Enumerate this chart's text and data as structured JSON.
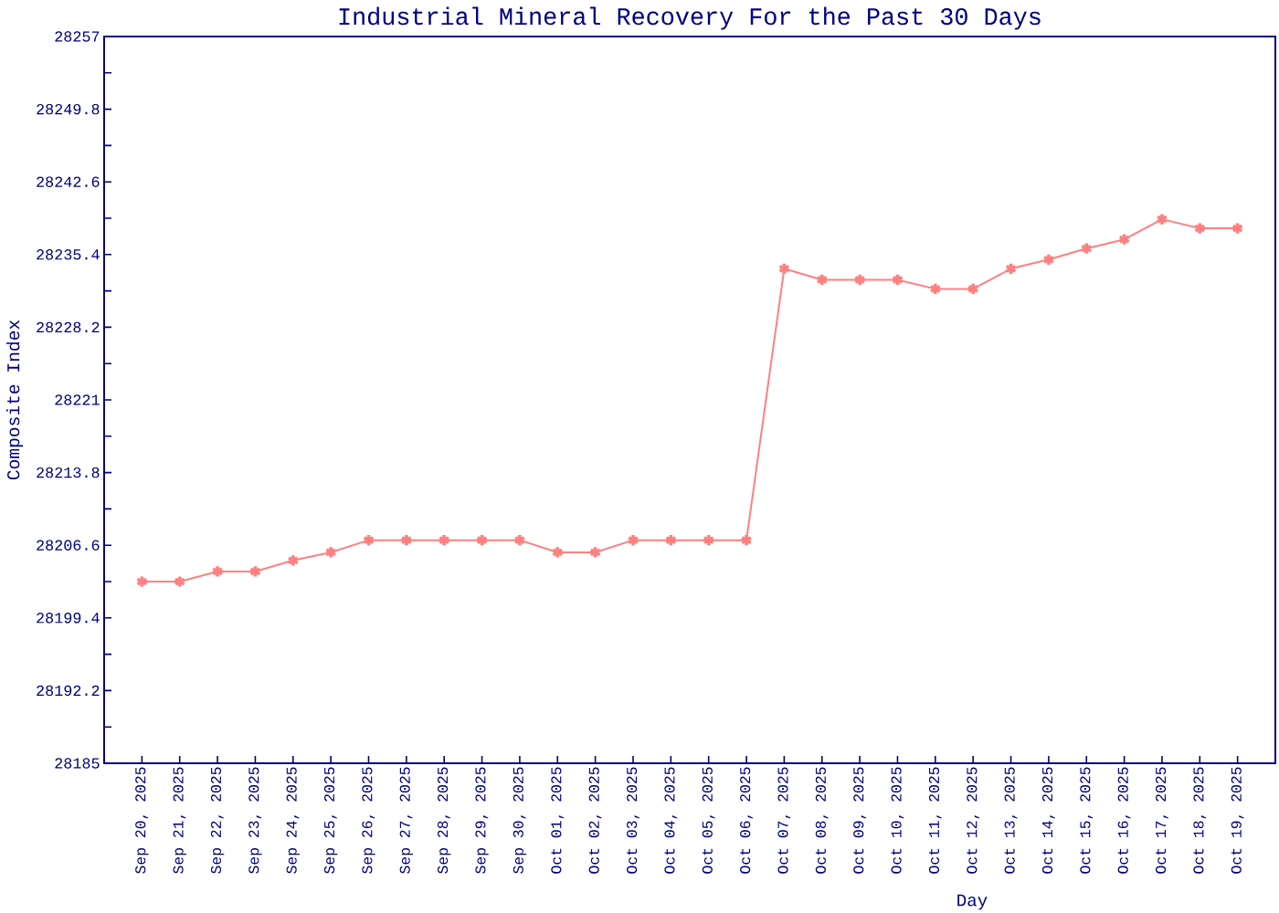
{
  "chart_data": {
    "type": "line",
    "title": "Industrial Mineral Recovery For the Past 30 Days",
    "xlabel": "Day",
    "ylabel": "Composite Index",
    "categories": [
      "Sep 20, 2025",
      "Sep 21, 2025",
      "Sep 22, 2025",
      "Sep 23, 2025",
      "Sep 24, 2025",
      "Sep 25, 2025",
      "Sep 26, 2025",
      "Sep 27, 2025",
      "Sep 28, 2025",
      "Sep 29, 2025",
      "Sep 30, 2025",
      "Oct 01, 2025",
      "Oct 02, 2025",
      "Oct 03, 2025",
      "Oct 04, 2025",
      "Oct 05, 2025",
      "Oct 06, 2025",
      "Oct 07, 2025",
      "Oct 08, 2025",
      "Oct 09, 2025",
      "Oct 10, 2025",
      "Oct 11, 2025",
      "Oct 12, 2025",
      "Oct 13, 2025",
      "Oct 14, 2025",
      "Oct 15, 2025",
      "Oct 16, 2025",
      "Oct 17, 2025",
      "Oct 18, 2025",
      "Oct 19, 2025"
    ],
    "series": [
      {
        "color": "#ff8080",
        "values": [
          28203,
          28203,
          28204,
          28204,
          28205.1,
          28205.9,
          28207.1,
          28207.1,
          28207.1,
          28207.1,
          28207.1,
          28205.9,
          28205.9,
          28207.1,
          28207.1,
          28207.1,
          28207.1,
          28234,
          28232.9,
          28232.9,
          28232.9,
          28232,
          28232,
          28234,
          28234.9,
          28236,
          28236.9,
          28238.9,
          28238,
          28238
        ]
      }
    ],
    "ylim": [
      28185,
      28257
    ],
    "yticks": [
      28185,
      {
        "value": 28188.6,
        "label": null
      },
      28192.2,
      {
        "value": 28195.8,
        "label": null
      },
      28199.4,
      {
        "value": 28203,
        "label": null
      },
      28206.6,
      {
        "value": 28210.2,
        "label": null
      },
      28213.8,
      {
        "value": 28217.4,
        "label": null
      },
      28221,
      {
        "value": 28224.6,
        "label": null
      },
      28228.2,
      {
        "value": 28231.8,
        "label": null
      },
      28235.4,
      {
        "value": 28239,
        "label": null
      },
      28242.6,
      {
        "value": 28246.2,
        "label": null
      },
      28249.8,
      {
        "value": 28253.4,
        "label": null
      },
      28257
    ],
    "marker": "cross"
  }
}
